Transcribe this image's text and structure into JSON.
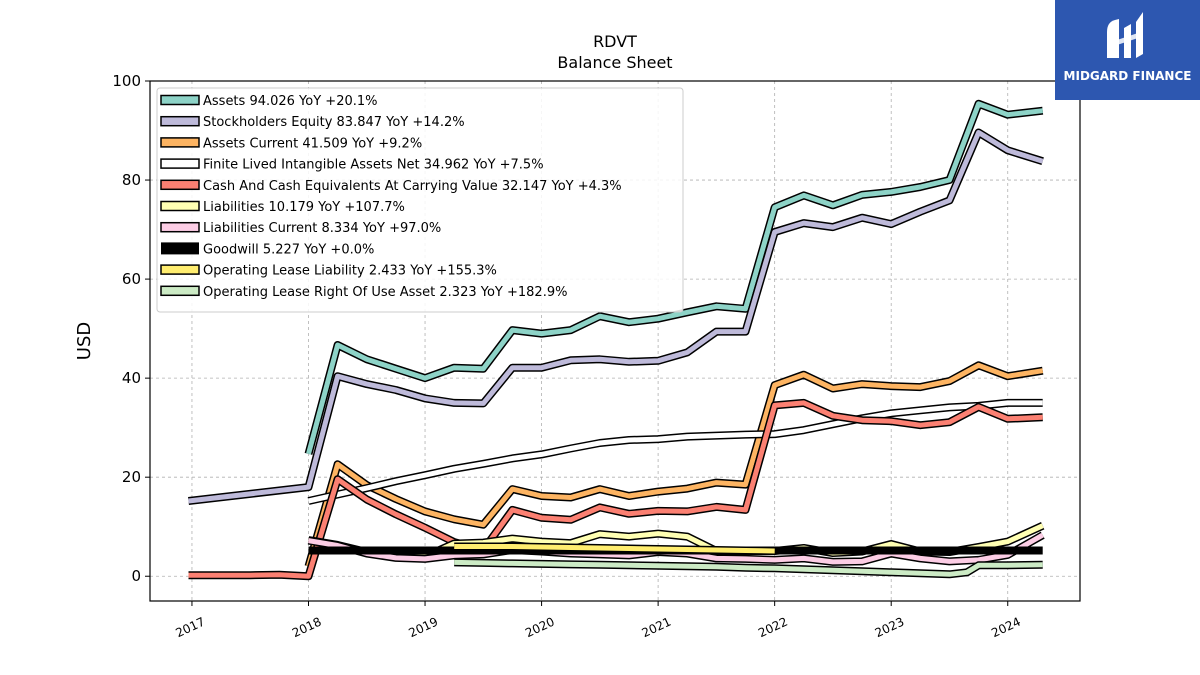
{
  "brand": {
    "name": "MIDGARD FINANCE",
    "logo_icon": "midgard-rune-logo",
    "background": "#2d57b0"
  },
  "chart_data": {
    "type": "line",
    "title": "RDVT",
    "subtitle": "Balance  Sheet",
    "ylabel": "USD",
    "xlabel": "",
    "ylim": [
      -5,
      100
    ],
    "xlim": [
      2016.64,
      2024.62
    ],
    "yticks": [
      0,
      20,
      40,
      60,
      80,
      100
    ],
    "xticks": [
      2017,
      2018,
      2019,
      2020,
      2021,
      2022,
      2023,
      2024
    ],
    "grid": true,
    "legend_position": "top-left",
    "series": [
      {
        "name": "Assets",
        "legend": "Assets  94.026 YoY +20.1%",
        "color": "#8dd3c7",
        "lw": 5,
        "points": [
          [
            2018.0,
            24.7
          ],
          [
            2018.25,
            46.7
          ],
          [
            2018.5,
            43.8
          ],
          [
            2018.75,
            41.9
          ],
          [
            2019.0,
            40.0
          ],
          [
            2019.25,
            42.1
          ],
          [
            2019.5,
            41.9
          ],
          [
            2019.75,
            49.7
          ],
          [
            2020.0,
            49.0
          ],
          [
            2020.25,
            49.7
          ],
          [
            2020.5,
            52.5
          ],
          [
            2020.75,
            51.3
          ],
          [
            2021.0,
            52.0
          ],
          [
            2021.25,
            53.3
          ],
          [
            2021.5,
            54.5
          ],
          [
            2021.75,
            54.0
          ],
          [
            2022.0,
            74.5
          ],
          [
            2022.25,
            76.9
          ],
          [
            2022.5,
            74.9
          ],
          [
            2022.75,
            77.0
          ],
          [
            2023.0,
            77.6
          ],
          [
            2023.25,
            78.6
          ],
          [
            2023.5,
            80.0
          ],
          [
            2023.75,
            95.4
          ],
          [
            2024.0,
            93.2
          ],
          [
            2024.3,
            94.0
          ]
        ]
      },
      {
        "name": "Stockholders Equity",
        "legend": "Stockholders Equity  83.847 YoY +14.2%",
        "color": "#bebada",
        "lw": 5,
        "points": [
          [
            2016.97,
            15.2
          ],
          [
            2018.0,
            18.0
          ],
          [
            2018.25,
            40.4
          ],
          [
            2018.5,
            38.8
          ],
          [
            2018.75,
            37.6
          ],
          [
            2019.0,
            35.9
          ],
          [
            2019.25,
            35.0
          ],
          [
            2019.5,
            34.9
          ],
          [
            2019.75,
            42.1
          ],
          [
            2020.0,
            42.1
          ],
          [
            2020.25,
            43.6
          ],
          [
            2020.5,
            43.8
          ],
          [
            2020.75,
            43.3
          ],
          [
            2021.0,
            43.5
          ],
          [
            2021.25,
            45.2
          ],
          [
            2021.5,
            49.4
          ],
          [
            2021.75,
            49.4
          ],
          [
            2022.0,
            69.5
          ],
          [
            2022.25,
            71.3
          ],
          [
            2022.5,
            70.5
          ],
          [
            2022.75,
            72.4
          ],
          [
            2023.0,
            71.1
          ],
          [
            2023.25,
            73.6
          ],
          [
            2023.5,
            75.9
          ],
          [
            2023.75,
            89.6
          ],
          [
            2024.0,
            86.0
          ],
          [
            2024.3,
            83.8
          ]
        ]
      },
      {
        "name": "Assets Current",
        "legend": "Assets Current  41.509 YoY +9.2%",
        "color": "#fdb462",
        "lw": 5,
        "points": [
          [
            2018.0,
            2.0
          ],
          [
            2018.25,
            22.6
          ],
          [
            2018.5,
            18.4
          ],
          [
            2018.75,
            15.6
          ],
          [
            2019.0,
            13.1
          ],
          [
            2019.25,
            11.5
          ],
          [
            2019.5,
            10.4
          ],
          [
            2019.75,
            17.6
          ],
          [
            2020.0,
            16.2
          ],
          [
            2020.25,
            15.9
          ],
          [
            2020.5,
            17.6
          ],
          [
            2020.75,
            16.2
          ],
          [
            2021.0,
            17.1
          ],
          [
            2021.25,
            17.7
          ],
          [
            2021.5,
            18.9
          ],
          [
            2021.75,
            18.5
          ],
          [
            2022.0,
            38.6
          ],
          [
            2022.25,
            40.7
          ],
          [
            2022.5,
            37.9
          ],
          [
            2022.75,
            38.8
          ],
          [
            2023.0,
            38.4
          ],
          [
            2023.25,
            38.2
          ],
          [
            2023.5,
            39.4
          ],
          [
            2023.75,
            42.6
          ],
          [
            2024.0,
            40.4
          ],
          [
            2024.3,
            41.5
          ]
        ]
      },
      {
        "name": "Finite Lived Intangible Assets Net",
        "legend": "Finite Lived Intangible Assets Net  34.962 YoY +7.5%",
        "color": "#ffffff",
        "lw": 5,
        "points": [
          [
            2018.0,
            15.2
          ],
          [
            2018.25,
            16.5
          ],
          [
            2018.5,
            17.8
          ],
          [
            2018.75,
            19.2
          ],
          [
            2019.0,
            20.4
          ],
          [
            2019.25,
            21.7
          ],
          [
            2019.5,
            22.7
          ],
          [
            2019.75,
            23.8
          ],
          [
            2020.0,
            24.6
          ],
          [
            2020.25,
            25.8
          ],
          [
            2020.5,
            26.9
          ],
          [
            2020.75,
            27.5
          ],
          [
            2021.0,
            27.7
          ],
          [
            2021.25,
            28.2
          ],
          [
            2021.5,
            28.4
          ],
          [
            2021.75,
            28.6
          ],
          [
            2022.0,
            28.7
          ],
          [
            2022.25,
            29.5
          ],
          [
            2022.5,
            30.7
          ],
          [
            2022.75,
            31.9
          ],
          [
            2023.0,
            32.9
          ],
          [
            2023.25,
            33.5
          ],
          [
            2023.5,
            34.1
          ],
          [
            2023.75,
            34.4
          ],
          [
            2024.0,
            35.0
          ],
          [
            2024.3,
            35.0
          ]
        ]
      },
      {
        "name": "Cash And Cash Equivalents At Carrying Value",
        "legend": "Cash And Cash Equivalents At Carrying Value  32.147 YoY +4.3%",
        "color": "#fb8072",
        "lw": 5,
        "points": [
          [
            2016.97,
            0.2
          ],
          [
            2017.5,
            0.2
          ],
          [
            2017.75,
            0.3
          ],
          [
            2018.0,
            0.0
          ],
          [
            2018.25,
            19.6
          ],
          [
            2018.5,
            15.5
          ],
          [
            2018.75,
            12.5
          ],
          [
            2019.0,
            9.8
          ],
          [
            2019.25,
            6.9
          ],
          [
            2019.5,
            5.3
          ],
          [
            2019.75,
            13.4
          ],
          [
            2020.0,
            11.8
          ],
          [
            2020.25,
            11.4
          ],
          [
            2020.5,
            13.9
          ],
          [
            2020.75,
            12.6
          ],
          [
            2021.0,
            13.2
          ],
          [
            2021.25,
            13.1
          ],
          [
            2021.5,
            14.0
          ],
          [
            2021.75,
            13.4
          ],
          [
            2022.0,
            34.5
          ],
          [
            2022.25,
            35.0
          ],
          [
            2022.5,
            32.4
          ],
          [
            2022.75,
            31.5
          ],
          [
            2023.0,
            31.3
          ],
          [
            2023.25,
            30.5
          ],
          [
            2023.5,
            31.1
          ],
          [
            2023.75,
            34.2
          ],
          [
            2024.0,
            31.8
          ],
          [
            2024.3,
            32.1
          ]
        ]
      },
      {
        "name": "Liabilities",
        "legend": "Liabilities  10.179 YoY +107.7%",
        "color": "#ffffb3",
        "lw": 5,
        "points": [
          [
            2018.0,
            7.3
          ],
          [
            2018.25,
            6.3
          ],
          [
            2018.5,
            4.9
          ],
          [
            2018.75,
            4.1
          ],
          [
            2019.0,
            4.0
          ],
          [
            2019.25,
            6.6
          ],
          [
            2019.5,
            6.8
          ],
          [
            2019.75,
            7.6
          ],
          [
            2020.0,
            7.0
          ],
          [
            2020.25,
            6.7
          ],
          [
            2020.5,
            8.5
          ],
          [
            2020.75,
            8.0
          ],
          [
            2021.0,
            8.6
          ],
          [
            2021.25,
            8.0
          ],
          [
            2021.5,
            5.1
          ],
          [
            2021.75,
            5.1
          ],
          [
            2022.0,
            5.1
          ],
          [
            2022.25,
            5.7
          ],
          [
            2022.5,
            4.7
          ],
          [
            2022.75,
            5.0
          ],
          [
            2023.0,
            6.5
          ],
          [
            2023.25,
            5.0
          ],
          [
            2023.5,
            4.9
          ],
          [
            2023.75,
            5.9
          ],
          [
            2024.0,
            7.0
          ],
          [
            2024.3,
            10.2
          ]
        ]
      },
      {
        "name": "Liabilities Current",
        "legend": "Liabilities Current  8.334 YoY +97.0%",
        "color": "#fccde5",
        "lw": 5,
        "points": [
          [
            2018.0,
            7.2
          ],
          [
            2018.25,
            6.2
          ],
          [
            2018.5,
            4.6
          ],
          [
            2018.75,
            3.7
          ],
          [
            2019.0,
            3.5
          ],
          [
            2019.25,
            4.2
          ],
          [
            2019.5,
            4.4
          ],
          [
            2019.75,
            5.3
          ],
          [
            2020.0,
            5.0
          ],
          [
            2020.25,
            4.6
          ],
          [
            2020.5,
            4.4
          ],
          [
            2020.75,
            4.2
          ],
          [
            2021.0,
            4.9
          ],
          [
            2021.25,
            4.6
          ],
          [
            2021.5,
            3.6
          ],
          [
            2021.75,
            3.5
          ],
          [
            2022.0,
            3.3
          ],
          [
            2022.25,
            3.6
          ],
          [
            2022.5,
            2.9
          ],
          [
            2022.75,
            3.0
          ],
          [
            2023.0,
            4.6
          ],
          [
            2023.25,
            3.6
          ],
          [
            2023.5,
            3.0
          ],
          [
            2023.75,
            3.3
          ],
          [
            2024.0,
            4.3
          ],
          [
            2024.3,
            8.3
          ]
        ]
      },
      {
        "name": "Goodwill",
        "legend": "Goodwill  5.227 YoY +0.0%",
        "color": "#000000",
        "lw": 8,
        "points": [
          [
            2018.0,
            5.2
          ],
          [
            2024.3,
            5.2
          ]
        ]
      },
      {
        "name": "Operating Lease Liability",
        "legend": "Operating Lease Liability  2.433 YoY +155.3%",
        "color": "#ffed6f",
        "lw": 5,
        "points": [
          [
            2019.25,
            6.0
          ],
          [
            2019.5,
            6.0
          ],
          [
            2019.75,
            6.0
          ],
          [
            2020.0,
            5.9
          ],
          [
            2020.25,
            5.8
          ],
          [
            2020.5,
            5.7
          ],
          [
            2020.75,
            5.6
          ],
          [
            2021.0,
            5.5
          ],
          [
            2021.25,
            5.4
          ],
          [
            2021.5,
            5.3
          ],
          [
            2021.75,
            5.2
          ],
          [
            2022.0,
            5.1
          ]
        ]
      },
      {
        "name": "Operating Lease Right Of Use Asset",
        "legend": "Operating Lease Right Of Use Asset  2.323 YoY +182.9%",
        "color": "#ccebc5",
        "lw": 5,
        "points": [
          [
            2019.25,
            2.8
          ],
          [
            2019.5,
            2.7
          ],
          [
            2019.75,
            2.6
          ],
          [
            2020.0,
            2.5
          ],
          [
            2020.25,
            2.4
          ],
          [
            2020.5,
            2.3
          ],
          [
            2020.75,
            2.2
          ],
          [
            2021.0,
            2.1
          ],
          [
            2021.25,
            2.0
          ],
          [
            2021.5,
            1.9
          ],
          [
            2021.75,
            1.7
          ],
          [
            2022.0,
            1.6
          ],
          [
            2022.25,
            1.4
          ],
          [
            2022.5,
            1.2
          ],
          [
            2022.75,
            1.0
          ],
          [
            2023.0,
            0.8
          ],
          [
            2023.25,
            0.6
          ],
          [
            2023.5,
            0.4
          ],
          [
            2023.65,
            0.8
          ],
          [
            2023.75,
            2.2
          ],
          [
            2024.0,
            2.2
          ],
          [
            2024.3,
            2.3
          ]
        ]
      }
    ]
  }
}
